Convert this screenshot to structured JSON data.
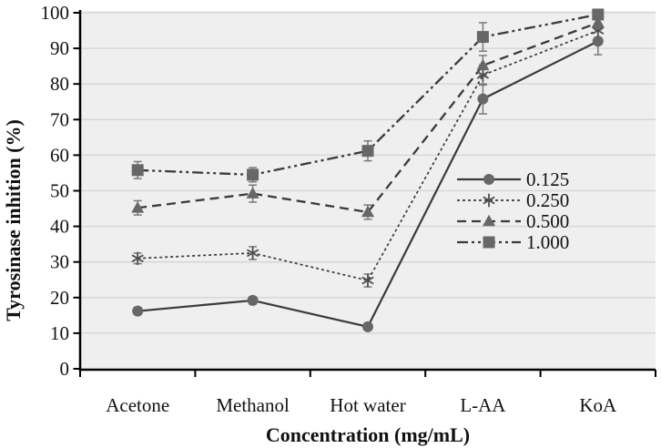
{
  "chart_data": {
    "type": "line",
    "title": "",
    "xlabel": "Concentration (mg/mL)",
    "ylabel": "Tyrosinase inhition (%)",
    "categories": [
      "Acetone",
      "Methanol",
      "Hot water",
      "L-AA",
      "KoA"
    ],
    "ylim": [
      0,
      100
    ],
    "yticks": [
      0,
      10,
      20,
      30,
      40,
      50,
      60,
      70,
      80,
      90,
      100
    ],
    "grid": "horizontal",
    "legend_position": "inside-right",
    "error_bars": true,
    "series": [
      {
        "name": "0.125",
        "marker": "circle",
        "line_style": "solid",
        "values": [
          16.2,
          19.2,
          11.8,
          75.8,
          92.0
        ],
        "errors": [
          1.0,
          1.0,
          0.8,
          4.2,
          3.8
        ]
      },
      {
        "name": "0.250",
        "marker": "asterisk",
        "line_style": "dotted",
        "values": [
          31.0,
          32.5,
          24.8,
          82.5,
          95.0
        ],
        "errors": [
          1.5,
          1.8,
          1.8,
          2.8,
          2.0
        ]
      },
      {
        "name": "0.500",
        "marker": "triangle",
        "line_style": "dashed",
        "values": [
          45.2,
          49.2,
          44.0,
          85.2,
          97.2
        ],
        "errors": [
          2.0,
          2.4,
          2.0,
          2.8,
          2.0
        ]
      },
      {
        "name": "1.000",
        "marker": "square",
        "line_style": "dash-dot-dot",
        "values": [
          55.8,
          54.5,
          61.2,
          93.2,
          99.5
        ],
        "errors": [
          2.4,
          2.0,
          2.8,
          4.0,
          1.2
        ]
      }
    ],
    "colors": {
      "line": "#3a3a3a",
      "marker": "#676767",
      "asterisk": "#4f4f4f",
      "error_bar": "#7a7a7a",
      "plot_bg": "#efefef",
      "gridline": "#d4d4d4",
      "axis": "#000000",
      "text": "#121212"
    }
  }
}
